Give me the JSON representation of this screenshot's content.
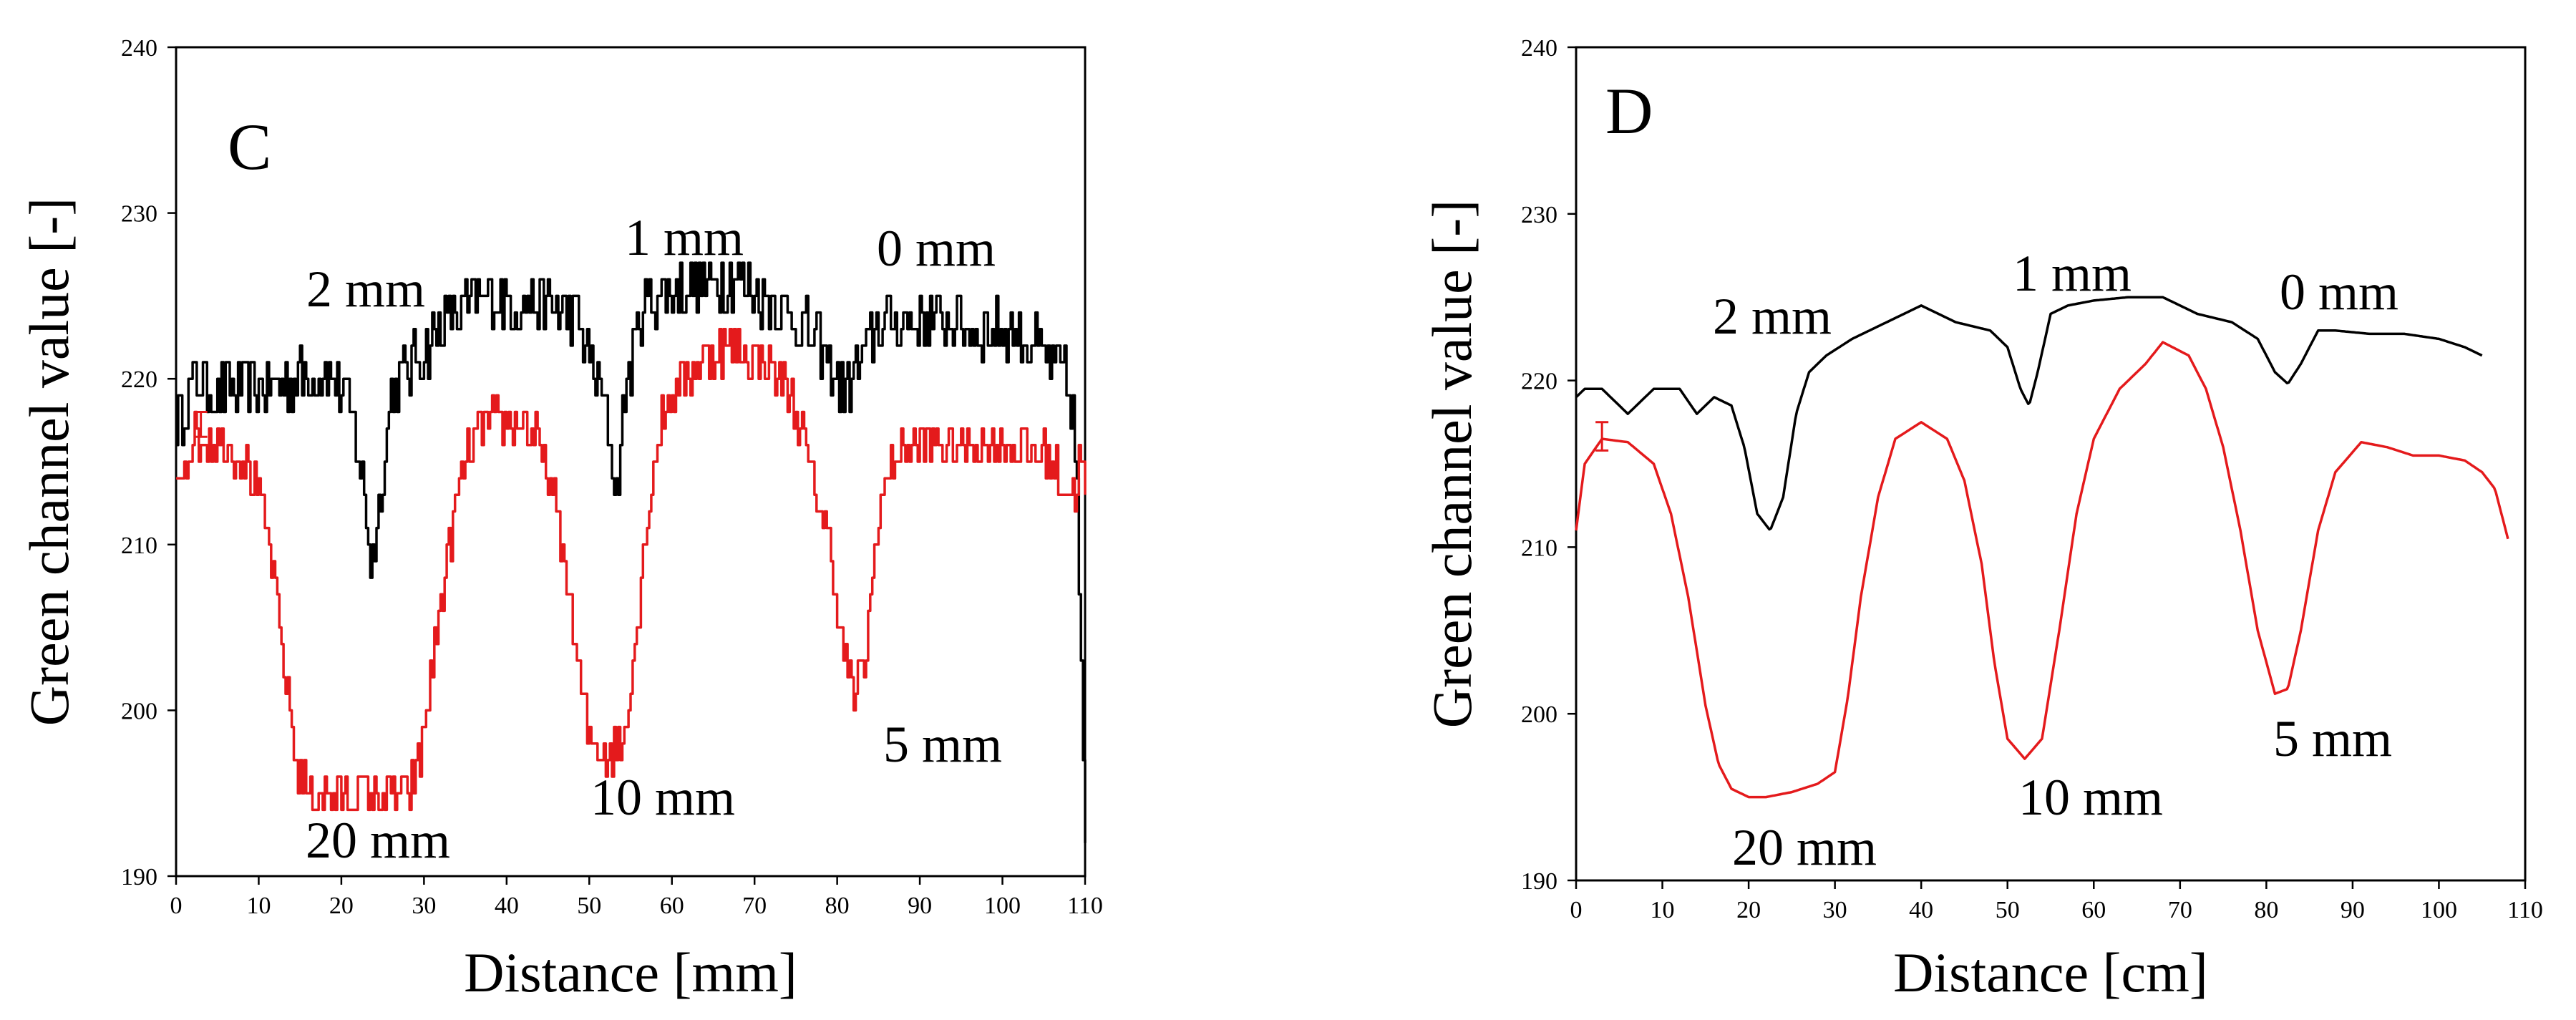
{
  "chart_data": [
    {
      "type": "line",
      "panel": "C",
      "xlabel": "Distance [mm]",
      "ylabel": "Green channel value [-]",
      "xlim": [
        0,
        110
      ],
      "ylim": [
        190,
        240
      ],
      "xticks": [
        0,
        10,
        20,
        30,
        40,
        50,
        60,
        70,
        80,
        90,
        100,
        110
      ],
      "yticks": [
        190,
        200,
        210,
        220,
        230,
        240
      ],
      "grid": false,
      "series": [
        {
          "name": "black",
          "color": "#000000",
          "noise": 1.8,
          "x": [
            0,
            2,
            5,
            8,
            12,
            15,
            18,
            20,
            21.5,
            22.5,
            23.5,
            24.5,
            26,
            28,
            31,
            33,
            36,
            39,
            42,
            45,
            48,
            50,
            51.5,
            52.5,
            53.3,
            54.3,
            56,
            58,
            62,
            66,
            68,
            71,
            74,
            77,
            79,
            80.5,
            82.5,
            84.5,
            87,
            92,
            97,
            101,
            104,
            106,
            107.5,
            108.5,
            109,
            109.5,
            110
          ],
          "y": [
            217,
            220,
            219,
            219.5,
            219.5,
            220,
            220.5,
            219.5,
            217,
            214,
            209,
            212,
            219,
            220.5,
            222.5,
            224,
            224.5,
            225,
            224.5,
            224.5,
            224,
            221.5,
            219,
            216,
            213,
            219,
            224,
            225,
            225.5,
            226,
            226,
            225,
            224,
            222.5,
            221,
            219.5,
            220.5,
            223,
            223.5,
            223.5,
            223,
            223,
            222,
            221,
            220,
            218,
            213,
            202,
            191
          ]
        },
        {
          "name": "red",
          "color": "#e41a1c",
          "noise": 1.5,
          "x": [
            0,
            2,
            5,
            8,
            10,
            11.5,
            13,
            14.5,
            16,
            18,
            20,
            22,
            24,
            26,
            28,
            29.5,
            31,
            33,
            35,
            37,
            40,
            43,
            45,
            47,
            48.5,
            50,
            52,
            54,
            55.5,
            57,
            58.5,
            60,
            62,
            65,
            68,
            71,
            74,
            76,
            77.5,
            79,
            80.5,
            82,
            83.5,
            85,
            87,
            90,
            95,
            100,
            105,
            107,
            108.5,
            109.5,
            110
          ],
          "y": [
            214,
            216.5,
            216.5,
            215.5,
            213,
            209,
            203,
            197,
            195,
            195,
            195,
            195,
            195,
            195,
            195,
            197,
            203,
            210,
            215,
            217,
            217.5,
            217,
            214,
            209,
            203,
            198,
            197.5,
            198,
            204,
            212,
            217,
            219,
            220.5,
            221.5,
            222,
            221,
            219.5,
            216,
            213,
            210,
            204,
            200.5,
            204,
            212,
            215.5,
            216,
            216,
            216,
            215.5,
            214,
            213,
            215.5,
            213
          ]
        }
      ],
      "error_bar": {
        "x": 3,
        "y": 217,
        "low": 216.5,
        "high": 218,
        "color": "#e41a1c"
      },
      "annotations": [
        {
          "text": "C",
          "role": "panel-letter"
        },
        {
          "text": "2 mm"
        },
        {
          "text": "1 mm"
        },
        {
          "text": "0 mm"
        },
        {
          "text": "5 mm"
        },
        {
          "text": "10 mm"
        },
        {
          "text": "20 mm"
        }
      ]
    },
    {
      "type": "line",
      "panel": "D",
      "xlabel": "Distance [cm]",
      "ylabel": "Green channel value [-]",
      "xlim": [
        0,
        110
      ],
      "ylim": [
        190,
        240
      ],
      "xticks": [
        0,
        10,
        20,
        30,
        40,
        50,
        60,
        70,
        80,
        90,
        100,
        110
      ],
      "yticks": [
        190,
        200,
        210,
        220,
        230,
        240
      ],
      "grid": false,
      "series": [
        {
          "name": "black",
          "color": "#000000",
          "noise": 0,
          "x": [
            0,
            1,
            3,
            6,
            9,
            12,
            14,
            16,
            18,
            19.5,
            21,
            22.5,
            24,
            25.5,
            27,
            29,
            32,
            36,
            40,
            44,
            48,
            50,
            51.5,
            52.5,
            53.5,
            55,
            57,
            60,
            64,
            68,
            72,
            76,
            79,
            81,
            82.5,
            84,
            86,
            88,
            92,
            96,
            100,
            103,
            105
          ],
          "y": [
            219,
            219.5,
            219.5,
            218,
            219.5,
            219.5,
            218,
            219,
            218.5,
            216,
            212,
            211,
            213,
            218,
            220.5,
            221.5,
            222.5,
            223.5,
            224.5,
            223.5,
            223,
            222,
            219.5,
            218.5,
            220.5,
            224,
            224.5,
            224.8,
            225,
            225,
            224,
            223.5,
            222.5,
            220.5,
            219.8,
            221,
            223,
            223,
            222.8,
            222.8,
            222.5,
            222,
            221.5
          ]
        },
        {
          "name": "red",
          "color": "#e41a1c",
          "noise": 0,
          "x": [
            0,
            1,
            3,
            6,
            9,
            11,
            13,
            15,
            16.5,
            18,
            20,
            22,
            25,
            28,
            30,
            31.5,
            33,
            35,
            37,
            40,
            43,
            45,
            47,
            48.5,
            50,
            52,
            54,
            56,
            58,
            60,
            63,
            66,
            68,
            71,
            73,
            75,
            77,
            79,
            81,
            82.5,
            84,
            86,
            88,
            91,
            94,
            97,
            100,
            103,
            105,
            106.5,
            108
          ],
          "y": [
            211,
            215,
            216.5,
            216.3,
            215,
            212,
            207,
            200.5,
            197,
            195.5,
            195,
            195,
            195.3,
            195.8,
            196.5,
            201,
            207,
            213,
            216.5,
            217.5,
            216.5,
            214,
            209,
            203,
            198.5,
            197.3,
            198.5,
            205,
            212,
            216.5,
            219.5,
            221,
            222.3,
            221.5,
            219.5,
            216,
            211,
            205,
            201.2,
            201.5,
            205,
            211,
            214.5,
            216.3,
            216,
            215.5,
            215.5,
            215.2,
            214.5,
            213.5,
            210.5
          ]
        }
      ],
      "error_bar": {
        "x": 3,
        "y": 216.5,
        "low": 215.8,
        "high": 217.5,
        "color": "#e41a1c"
      },
      "annotations": [
        {
          "text": "D",
          "role": "panel-letter"
        },
        {
          "text": "2 mm"
        },
        {
          "text": "1 mm"
        },
        {
          "text": "0 mm"
        },
        {
          "text": "5 mm"
        },
        {
          "text": "10 mm"
        },
        {
          "text": "20 mm"
        }
      ]
    }
  ]
}
